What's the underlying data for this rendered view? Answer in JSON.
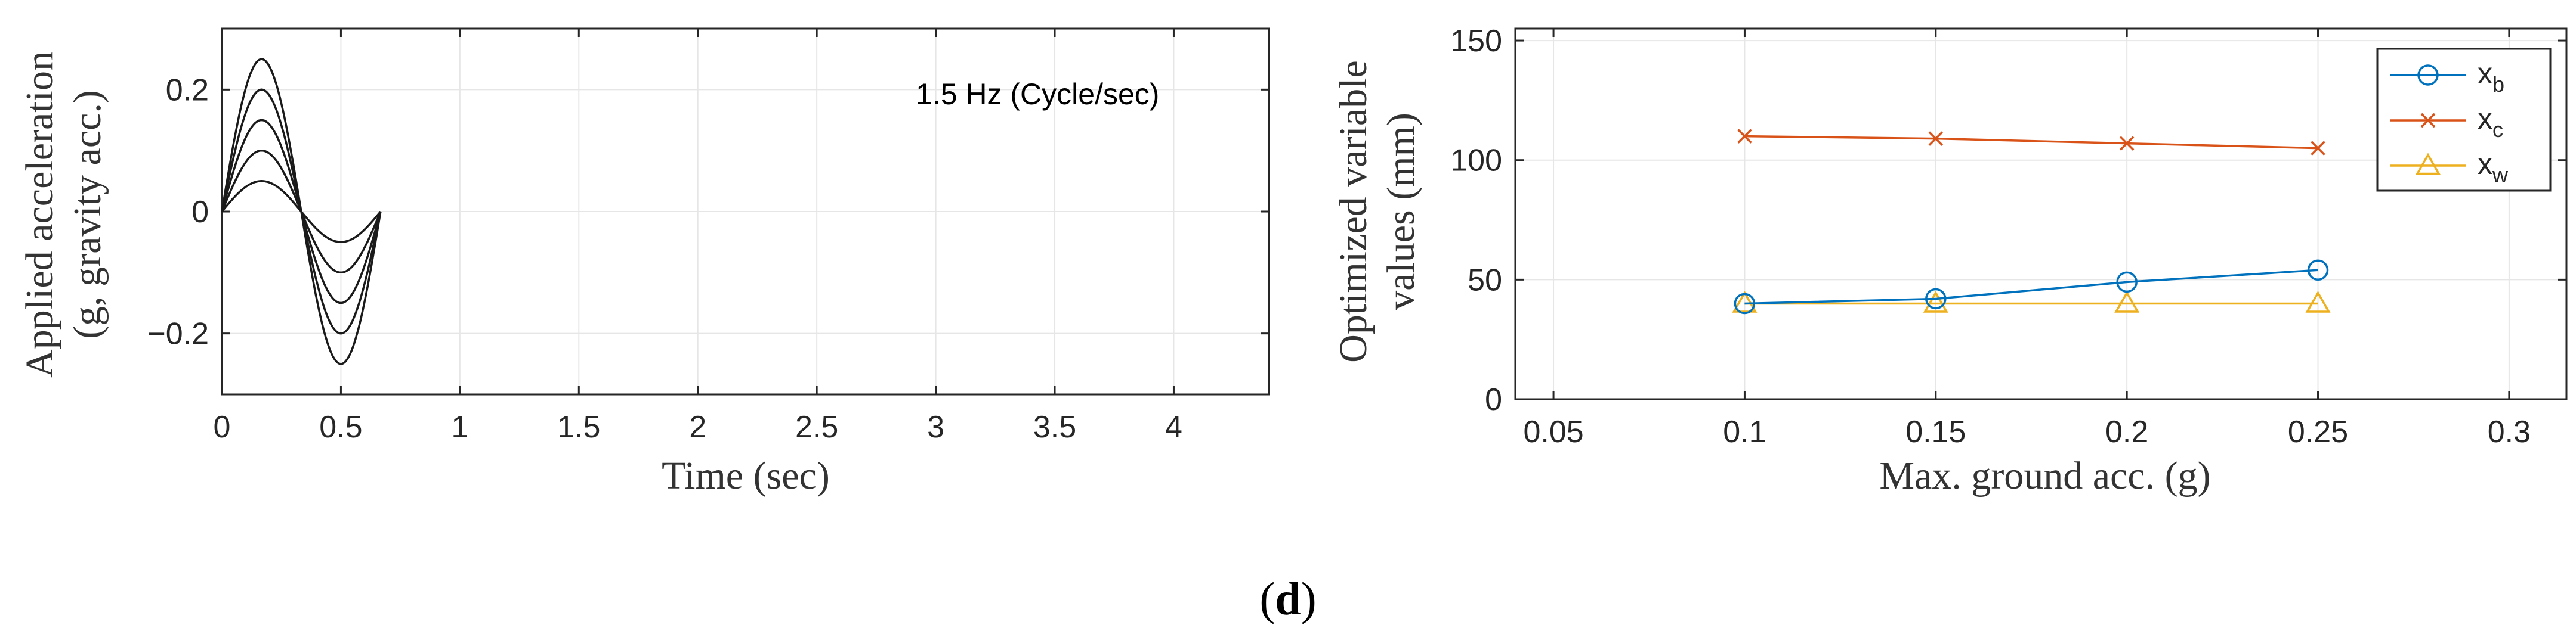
{
  "caption": {
    "open": "(",
    "letter": "d",
    "close": ")"
  },
  "chart_data": [
    {
      "type": "line",
      "annotation": "1.5 Hz (Cycle/sec)",
      "xlabel": "Time (sec)",
      "ylabel_line1": "Applied acceleration",
      "ylabel_line2": "(g, gravity acc.)",
      "xlim": [
        0,
        4.4
      ],
      "ylim": [
        -0.3,
        0.3
      ],
      "xticks": [
        0,
        0.5,
        1,
        1.5,
        2,
        2.5,
        3,
        3.5,
        4
      ],
      "xtick_labels": [
        "0",
        "0.5",
        "1",
        "1.5",
        "2",
        "2.5",
        "3",
        "3.5",
        "4"
      ],
      "yticks": [
        -0.2,
        0,
        0.2
      ],
      "ytick_labels": [
        "−0.2",
        "0",
        "0.2"
      ],
      "grid": true,
      "frequency_hz": 1.5,
      "duration_sec": 0.6667,
      "series": [
        {
          "name": "0.05 g",
          "amplitude": 0.05
        },
        {
          "name": "0.10 g",
          "amplitude": 0.1
        },
        {
          "name": "0.15 g",
          "amplitude": 0.15
        },
        {
          "name": "0.20 g",
          "amplitude": 0.2
        },
        {
          "name": "0.25 g",
          "amplitude": 0.25
        }
      ],
      "line_color": "#1a1a1a"
    },
    {
      "type": "line",
      "xlabel": "Max. ground acc. (g)",
      "ylabel_line1": "Optimized variable",
      "ylabel_line2": "values (mm)",
      "xlim": [
        0.04,
        0.315
      ],
      "ylim": [
        0,
        155
      ],
      "xticks": [
        0.05,
        0.1,
        0.15,
        0.2,
        0.25,
        0.3
      ],
      "xtick_labels": [
        "0.05",
        "0.1",
        "0.15",
        "0.2",
        "0.25",
        "0.3"
      ],
      "yticks": [
        0,
        50,
        100,
        150
      ],
      "ytick_labels": [
        "0",
        "50",
        "100",
        "150"
      ],
      "grid": true,
      "legend_position": "top-right",
      "x": [
        0.1,
        0.15,
        0.2,
        0.25
      ],
      "series": [
        {
          "name": "x",
          "sub": "b",
          "values": [
            40,
            42,
            49,
            54
          ],
          "color": "#0072BD",
          "marker": "circle"
        },
        {
          "name": "x",
          "sub": "c",
          "values": [
            110,
            109,
            107,
            105
          ],
          "color": "#D95319",
          "marker": "x"
        },
        {
          "name": "x",
          "sub": "w",
          "values": [
            40,
            40,
            40,
            40
          ],
          "color": "#EDB120",
          "marker": "triangle"
        }
      ]
    }
  ]
}
